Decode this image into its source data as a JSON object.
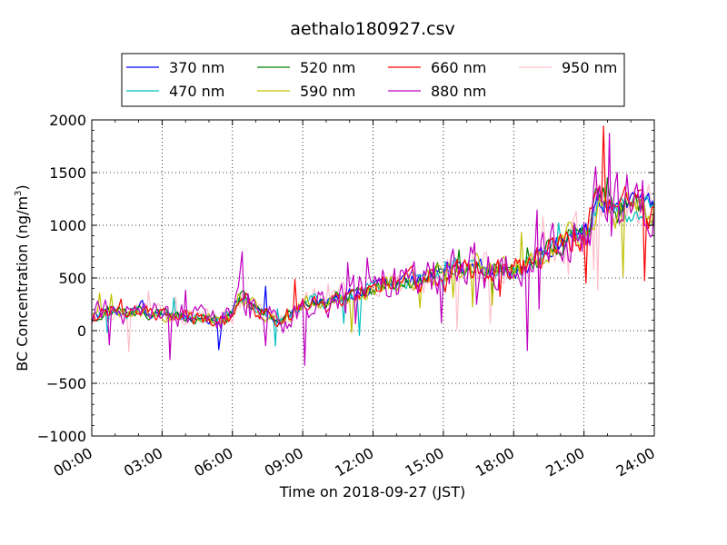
{
  "chart_data": {
    "type": "line",
    "title": "aethalo180927.csv",
    "xlabel": "Time on 2018-09-27 (JST)",
    "ylabel": "BC Concentration (ng/m³)",
    "ylabel_parts": {
      "main": "BC Concentration (ng/m",
      "sup": "3",
      "close": ")"
    },
    "x_unit": "hours",
    "xlim": [
      0,
      24
    ],
    "ylim": [
      -1000,
      2000
    ],
    "x_ticks": [
      {
        "value": 0,
        "label": "00:00"
      },
      {
        "value": 3,
        "label": "03:00"
      },
      {
        "value": 6,
        "label": "06:00"
      },
      {
        "value": 9,
        "label": "09:00"
      },
      {
        "value": 12,
        "label": "12:00"
      },
      {
        "value": 15,
        "label": "15:00"
      },
      {
        "value": 18,
        "label": "18:00"
      },
      {
        "value": 21,
        "label": "21:00"
      },
      {
        "value": 24,
        "label": "24:00"
      }
    ],
    "y_ticks": [
      {
        "value": -1000,
        "label": "−1000"
      },
      {
        "value": -500,
        "label": "−500"
      },
      {
        "value": 0,
        "label": "0"
      },
      {
        "value": 500,
        "label": "500"
      },
      {
        "value": 1000,
        "label": "1000"
      },
      {
        "value": 1500,
        "label": "1500"
      },
      {
        "value": 2000,
        "label": "2000"
      }
    ],
    "grid": true,
    "legend_placement": "top, above plot",
    "legend_columns": 4,
    "series": [
      {
        "name": "370 nm",
        "color": "#0000ff",
        "noise": 0.35,
        "spike": 0.02
      },
      {
        "name": "470 nm",
        "color": "#00bfbf",
        "noise": 0.4,
        "spike": 0.02
      },
      {
        "name": "520 nm",
        "color": "#008000",
        "noise": 0.45,
        "spike": 0.03
      },
      {
        "name": "590 nm",
        "color": "#bfbf00",
        "noise": 0.5,
        "spike": 0.03
      },
      {
        "name": "660 nm",
        "color": "#ff0000",
        "noise": 0.55,
        "spike": 0.03
      },
      {
        "name": "880 nm",
        "color": "#bf00bf",
        "noise": 1.0,
        "spike": 0.05
      },
      {
        "name": "950 nm",
        "color": "#ffc0cb",
        "noise": 0.7,
        "spike": 0.06
      }
    ],
    "baseline": {
      "x": [
        0,
        0.5,
        1,
        1.5,
        2,
        2.5,
        3,
        3.5,
        4,
        4.5,
        5,
        5.5,
        6,
        6.3,
        6.7,
        7,
        7.5,
        8,
        8.5,
        9,
        9.5,
        10,
        10.5,
        11,
        11.5,
        12,
        12.5,
        13,
        13.5,
        14,
        14.5,
        15,
        15.5,
        16,
        16.5,
        17,
        17.5,
        18,
        18.5,
        19,
        19.5,
        20,
        20.5,
        21,
        21.3,
        21.6,
        21.9,
        22.2,
        22.5,
        23,
        23.5,
        24
      ],
      "y": [
        120,
        170,
        200,
        160,
        190,
        150,
        160,
        130,
        140,
        120,
        110,
        100,
        150,
        320,
        280,
        200,
        150,
        60,
        150,
        250,
        300,
        240,
        320,
        330,
        370,
        420,
        460,
        440,
        480,
        470,
        520,
        560,
        600,
        580,
        620,
        560,
        580,
        560,
        620,
        700,
        780,
        830,
        890,
        920,
        980,
        1300,
        1200,
        1120,
        1150,
        1180,
        1200,
        1150
      ]
    }
  }
}
